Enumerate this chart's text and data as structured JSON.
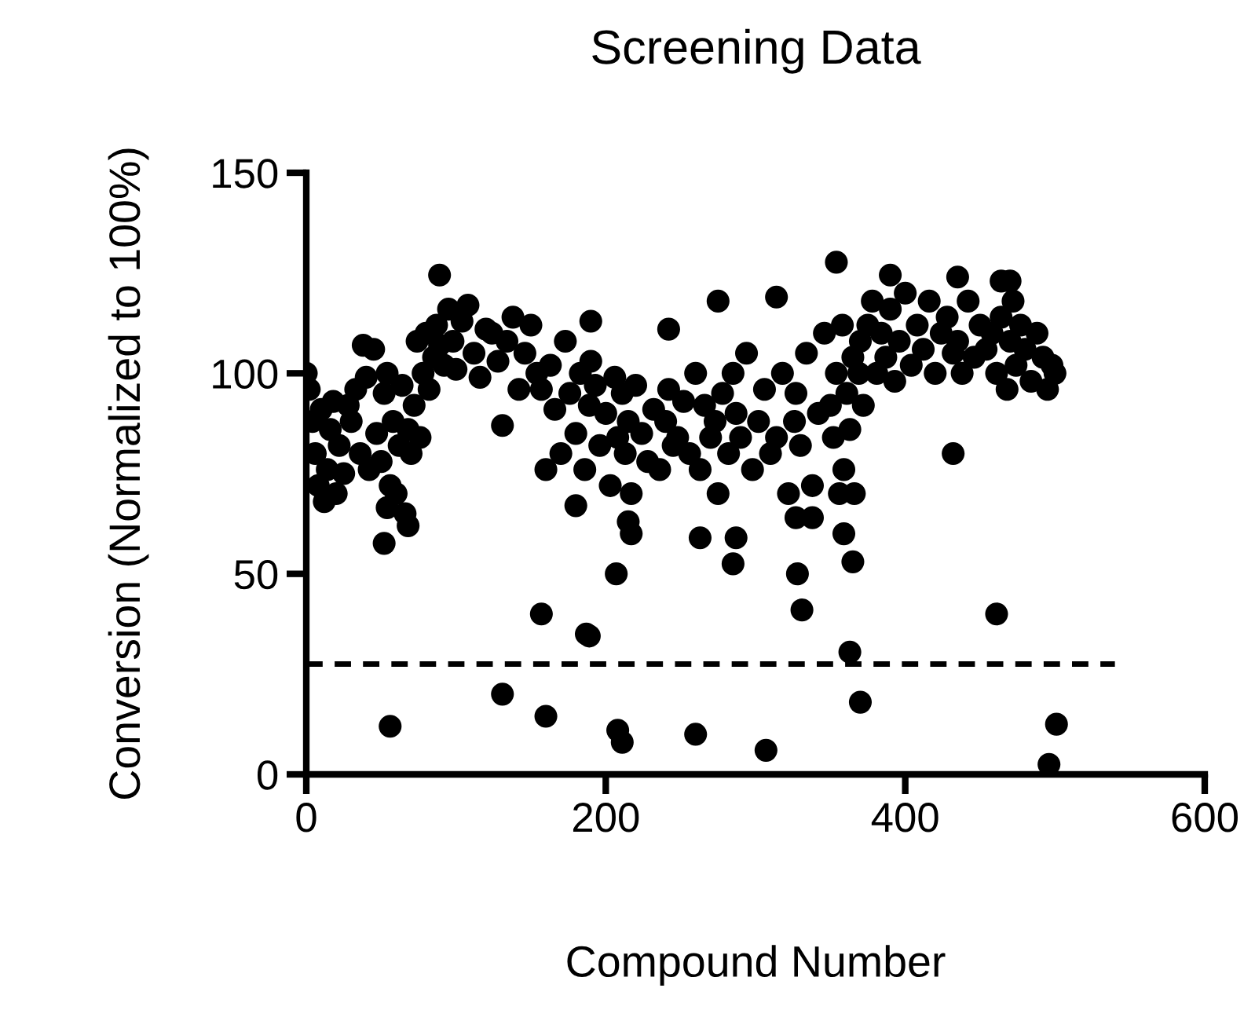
{
  "chart_data": {
    "type": "scatter",
    "title": "Screening Data",
    "xlabel": "Compound Number",
    "ylabel": "Conversion (Normalized to 100%)",
    "xlim": [
      0,
      600
    ],
    "ylim": [
      0,
      150
    ],
    "xticks": [
      0,
      200,
      400,
      600
    ],
    "yticks": [
      0,
      50,
      100,
      150
    ],
    "grid": false,
    "legend": false,
    "series": [
      {
        "color": "#000000",
        "marker": "circle",
        "x": [
          0,
          2,
          4,
          6,
          8,
          10,
          12,
          14,
          16,
          18,
          20,
          22,
          25,
          28,
          30,
          33,
          36,
          38,
          40,
          42,
          45,
          47,
          50,
          52,
          54,
          56,
          58,
          60,
          62,
          64,
          66,
          68,
          70,
          72,
          74,
          76,
          78,
          80,
          82,
          85,
          87,
          89,
          92,
          95,
          98,
          100,
          104,
          108,
          112,
          116,
          120,
          124,
          128,
          131,
          134,
          138,
          142,
          146,
          150,
          154,
          157,
          160,
          163,
          166,
          170,
          173,
          176,
          180,
          183,
          186,
          189,
          190,
          193,
          196,
          200,
          203,
          206,
          208,
          211,
          213,
          215,
          217,
          220,
          224,
          228,
          232,
          236,
          240,
          242,
          245,
          248,
          252,
          256,
          260,
          263,
          266,
          270,
          273,
          275,
          278,
          282,
          285,
          287,
          290,
          294,
          298,
          302,
          306,
          310,
          314,
          318,
          322,
          326,
          327,
          330,
          334,
          338,
          342,
          346,
          350,
          352,
          354,
          356,
          358,
          359,
          361,
          363,
          365,
          366,
          369,
          370,
          372,
          375,
          378,
          381,
          384,
          387,
          390,
          393,
          396,
          400,
          404,
          408,
          412,
          416,
          420,
          424,
          428,
          432,
          435,
          438,
          442,
          446,
          450,
          454,
          458,
          461,
          464,
          468,
          470,
          472,
          474,
          477,
          480,
          484,
          488,
          492,
          495,
          498,
          500,
          56,
          131,
          157,
          160,
          187,
          189,
          207,
          208,
          211,
          260,
          307,
          363,
          370,
          461,
          496,
          501,
          331,
          328,
          52,
          68,
          54,
          180,
          263,
          285,
          287,
          365,
          359,
          217,
          215,
          327,
          338,
          432
        ],
        "values": [
          100,
          96,
          88,
          80,
          72,
          91,
          68,
          76,
          86,
          93,
          70,
          82,
          75,
          92,
          88,
          96,
          80,
          107,
          99,
          76,
          106,
          85,
          78,
          95,
          100,
          72,
          88,
          70,
          82,
          97,
          65,
          86,
          80,
          92,
          108,
          84,
          100,
          110,
          96,
          104,
          112,
          107,
          102,
          116,
          108,
          101,
          113,
          117,
          105,
          99,
          111,
          110,
          103,
          87,
          108,
          114,
          96,
          105,
          112,
          100,
          96,
          76,
          102,
          91,
          80,
          108,
          95,
          85,
          100,
          76,
          92,
          103,
          97,
          82,
          90,
          72,
          99,
          84,
          95,
          80,
          88,
          70,
          97,
          85,
          78,
          91,
          76,
          88,
          96,
          82,
          84,
          93,
          80,
          100,
          76,
          92,
          84,
          88,
          70,
          95,
          80,
          100,
          90,
          84,
          105,
          76,
          88,
          96,
          80,
          84,
          100,
          70,
          88,
          95,
          82,
          105,
          72,
          90,
          110,
          92,
          84,
          100,
          70,
          112,
          76,
          95,
          86,
          104,
          70,
          100,
          108,
          92,
          112,
          118,
          100,
          110,
          104,
          116,
          98,
          108,
          120,
          102,
          112,
          106,
          118,
          100,
          110,
          114,
          105,
          108,
          100,
          118,
          104,
          112,
          106,
          110,
          100,
          114,
          96,
          108,
          118,
          102,
          112,
          106,
          98,
          110,
          104,
          96,
          102,
          100,
          12,
          20,
          40,
          14.5,
          35,
          34.5,
          50,
          11,
          8,
          10,
          6,
          30.5,
          18,
          40,
          2.5,
          12.5,
          41,
          50,
          57.6,
          62,
          66.5,
          67,
          59,
          52.5,
          59,
          53,
          60,
          60,
          63,
          64,
          64,
          80
        ]
      },
      {
        "color": "#000000",
        "marker": "circle",
        "x": [
          89,
          354,
          390,
          435,
          464,
          470,
          275,
          314,
          190,
          242
        ],
        "values": [
          124.5,
          127.7,
          124.5,
          124,
          123,
          123,
          118,
          119,
          113,
          111
        ]
      },
      {
        "type": "line",
        "color": "#000000",
        "marker": "none",
        "line_style": "dashed",
        "x": [
          0,
          540
        ],
        "values": [
          27.5,
          27.5
        ]
      }
    ]
  }
}
